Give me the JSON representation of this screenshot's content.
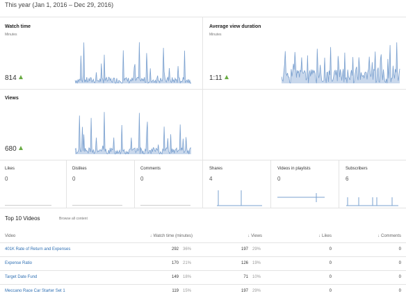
{
  "period": "This year (Jan 1, 2016 – Dec 29, 2016)",
  "colors": {
    "line": "#7aa0cf",
    "fill": "#c9d8ec",
    "accent_up": "#6aac44",
    "link": "#2e6fb3"
  },
  "panels": {
    "watch_time": {
      "title": "Watch time",
      "sub": "Minutes",
      "value": "814",
      "trend_icon": "up-triangle-icon"
    },
    "avg_view": {
      "title": "Average view duration",
      "sub": "Minutes",
      "value": "1:11",
      "trend_icon": "up-triangle-icon"
    },
    "views": {
      "title": "Views",
      "value": "680",
      "trend_icon": "up-triangle-icon"
    }
  },
  "small_metrics": [
    {
      "title": "Likes",
      "value": "0"
    },
    {
      "title": "Dislikes",
      "value": "0"
    },
    {
      "title": "Comments",
      "value": "0"
    },
    {
      "title": "Shares",
      "value": "4"
    },
    {
      "title": "Videos in playlists",
      "value": "0"
    },
    {
      "title": "Subscribers",
      "value": "6"
    }
  ],
  "top10": {
    "title": "Top 10 Videos",
    "browse": "Browse all content",
    "headers": {
      "video": "Video",
      "watch_time": "Watch time (minutes)",
      "views": "Views",
      "likes": "Likes",
      "comments": "Comments"
    },
    "rows": [
      {
        "title": "401K Rate of Return and Expenses",
        "watch": "292",
        "watch_pct": "36%",
        "views": "197",
        "views_pct": "29%",
        "likes": "0",
        "comments": "0"
      },
      {
        "title": "Expense Ratio",
        "watch": "170",
        "watch_pct": "21%",
        "views": "126",
        "views_pct": "19%",
        "likes": "0",
        "comments": "0"
      },
      {
        "title": "Target Date Fund",
        "watch": "149",
        "watch_pct": "18%",
        "views": "71",
        "views_pct": "10%",
        "likes": "0",
        "comments": "0"
      },
      {
        "title": "Meccano Race Car Starter Set 1",
        "watch": "119",
        "watch_pct": "15%",
        "views": "197",
        "views_pct": "29%",
        "likes": "0",
        "comments": "0"
      }
    ]
  }
}
